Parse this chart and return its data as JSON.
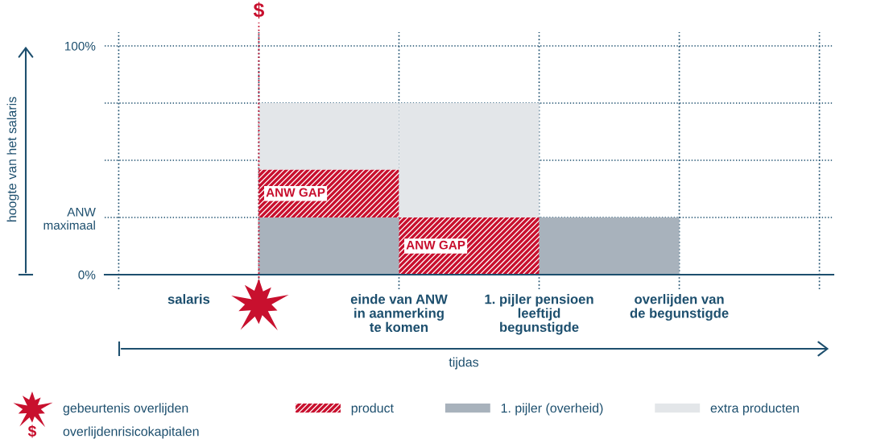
{
  "chart_data": {
    "type": "bar",
    "stacked": true,
    "ylabel": "hoogte van het salaris",
    "categories": [
      null,
      null,
      null,
      null,
      null
    ],
    "series": [
      {
        "name": "1. pijler (overheid)",
        "color": "#a8b2bc",
        "values": [
          null,
          25,
          null,
          25,
          null
        ]
      },
      {
        "name": "product",
        "color": "#c8102e",
        "values": [
          null,
          21,
          25,
          null,
          null
        ],
        "value_labels": [
          null,
          "ANW GAP",
          "ANW GAP",
          null,
          null
        ]
      },
      {
        "name": "extra producten",
        "color": "#e3e6e9",
        "values": [
          null,
          29,
          50,
          null,
          null
        ]
      }
    ],
    "ylim": [
      0,
      106
    ],
    "yticks": [
      {
        "value": 0,
        "label": "0%"
      },
      {
        "value": 25,
        "label": "ANW\nmaximaal"
      },
      {
        "value": 50,
        "label": null
      },
      {
        "value": 75,
        "label": null
      },
      {
        "value": 100,
        "label": "100%"
      }
    ],
    "annotations": [
      "salaris",
      "einde van ANW\nin aanmerking\nte komen",
      "1. pijler pensioen\nleeftijd\nbegunstigde",
      "overlijden van\nde begunstigde",
      "tijdas",
      "$",
      "gebeurtenis overlijden",
      "overlijdenrisicokapitalen"
    ],
    "grid": true,
    "legend": "bottom"
  }
}
